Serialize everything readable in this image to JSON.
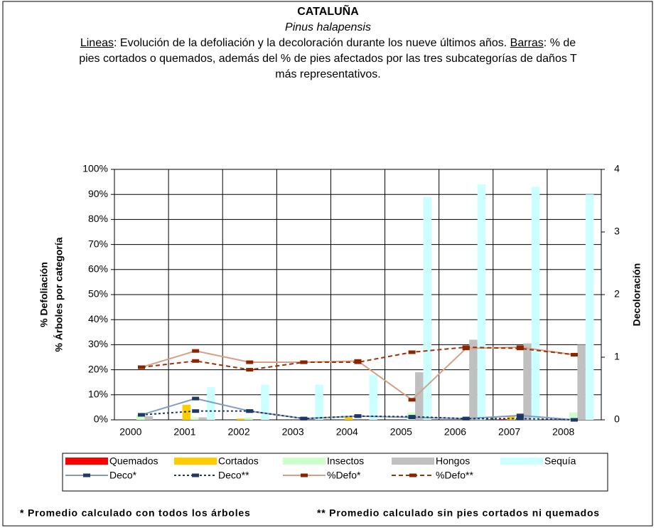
{
  "chart_data": {
    "type": "bar_line",
    "title": "CATALUÑA",
    "subtitle": "Pinus halapensis",
    "description": [
      "Lineas",
      ": Evolución de la defoliación y la decoloración durante los nueve últimos años. ",
      "Barras",
      ": % de pies cortados o quemados, además del % de pies afectados por las tres subcategorías de daños T más representativos."
    ],
    "y_label": [
      "% Defoliación",
      "% Árboles por categoría"
    ],
    "y2_label": "Decoloración",
    "categories": [
      "2000",
      "2001",
      "2002",
      "2003",
      "2004",
      "2005",
      "2006",
      "2007",
      "2008"
    ],
    "ylim": [
      0,
      100
    ],
    "yticks": [
      {
        "value": 0,
        "label": "0%"
      },
      {
        "value": 10,
        "label": "10%"
      },
      {
        "value": 20,
        "label": "20%"
      },
      {
        "value": 30,
        "label": "30%"
      },
      {
        "value": 40,
        "label": "40%"
      },
      {
        "value": 50,
        "label": "50%"
      },
      {
        "value": 60,
        "label": "60%"
      },
      {
        "value": 70,
        "label": "70%"
      },
      {
        "value": 80,
        "label": "80%"
      },
      {
        "value": 90,
        "label": "90%"
      },
      {
        "value": 100,
        "label": "100%"
      }
    ],
    "y2lim": [
      0,
      4
    ],
    "y2ticks": [
      0,
      1,
      2,
      3,
      4
    ],
    "grid": true,
    "legend": "bottom",
    "series": [
      {
        "name": "Quemados",
        "kind": "bar",
        "color": "#ff0000",
        "values": [
          0,
          0,
          0,
          0,
          0,
          0,
          0,
          0.3,
          0
        ]
      },
      {
        "name": "Cortados",
        "kind": "bar",
        "color": "#ffcc00",
        "values": [
          0,
          6,
          0.5,
          0,
          1,
          0,
          0,
          1.5,
          0
        ]
      },
      {
        "name": "Insectos",
        "kind": "bar",
        "color": "#ccffcc",
        "values": [
          2,
          1,
          1,
          0,
          0,
          3,
          0,
          0,
          3
        ]
      },
      {
        "name": "Hongos",
        "kind": "bar",
        "color": "#c0c0c0",
        "values": [
          1.5,
          1,
          0,
          0,
          0,
          19,
          32,
          30.5,
          30
        ]
      },
      {
        "name": "Sequía",
        "kind": "bar",
        "color": "#ccffff",
        "values": [
          0,
          13,
          14,
          14,
          18,
          89,
          94,
          93,
          90
        ]
      },
      {
        "name": "Deco*",
        "kind": "line",
        "axis": "y2",
        "style": "solid",
        "color": "#7f9cc0",
        "marker_color": "#1f3864",
        "values": [
          0.08,
          0.34,
          0.14,
          0.02,
          0.06,
          0.04,
          0.02,
          0.07,
          0
        ]
      },
      {
        "name": "Deco**",
        "kind": "line",
        "axis": "y2",
        "style": "dotted",
        "color": "#1f3864",
        "marker_color": "#1f3864",
        "values": [
          0.08,
          0.14,
          0.14,
          0.02,
          0.06,
          0.05,
          0.02,
          0.02,
          0
        ]
      },
      {
        "name": "%Defo*",
        "kind": "line",
        "style": "solid",
        "color": "#d4a088",
        "marker_color": "#8b2500",
        "values": [
          21,
          27.5,
          23,
          23,
          23.5,
          8,
          28.5,
          29,
          26
        ]
      },
      {
        "name": "%Defo**",
        "kind": "line",
        "style": "dashed",
        "color": "#a0300a",
        "marker_color": "#8b2500",
        "values": [
          21,
          23.5,
          20,
          23,
          23,
          27,
          29,
          28.5,
          26
        ]
      }
    ],
    "footnotes": [
      "* Promedio calculado con todos los árboles",
      "** Promedio calculado sin pies cortados ni quemados"
    ]
  }
}
